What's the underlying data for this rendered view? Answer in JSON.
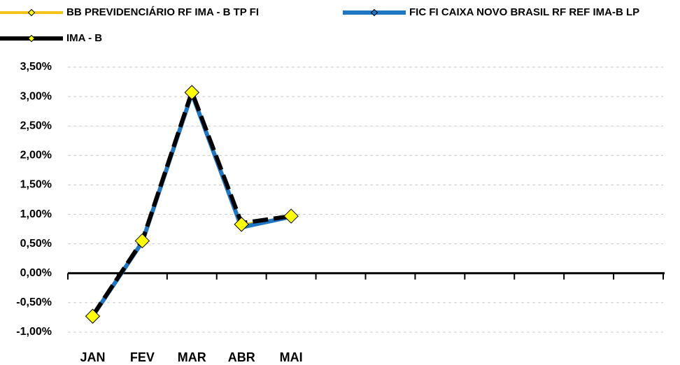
{
  "chart_data": {
    "type": "line",
    "categories": [
      "JAN",
      "FEV",
      "MAR",
      "ABR",
      "MAI",
      null,
      null,
      null,
      null,
      null,
      null,
      null
    ],
    "series": [
      {
        "name": "BB PREVIDENCIÁRIO RF IMA - B TP FI",
        "color": "#f2c417",
        "values": [
          -0.73,
          0.55,
          3.07,
          0.83,
          0.97,
          null,
          null,
          null,
          null,
          null,
          null,
          null
        ]
      },
      {
        "name": "FIC FI CAIXA NOVO BRASIL RF REF IMA-B LP",
        "color": "#1f77c4",
        "values": [
          -0.73,
          0.53,
          3.05,
          0.78,
          0.96,
          null,
          null,
          null,
          null,
          null,
          null,
          null
        ]
      },
      {
        "name": "IMA - B",
        "color": "#000000",
        "values": [
          -0.72,
          0.55,
          3.08,
          0.85,
          0.97,
          null,
          null,
          null,
          null,
          null,
          null,
          null
        ]
      }
    ],
    "ylim": [
      -1,
      3.5
    ],
    "yticks": [
      {
        "value": -1,
        "label": "-1,00%"
      },
      {
        "value": -0.5,
        "label": "-0,50%"
      },
      {
        "value": 0,
        "label": "0,00%"
      },
      {
        "value": 0.5,
        "label": "0,50%"
      },
      {
        "value": 1,
        "label": "1,00%"
      },
      {
        "value": 1.5,
        "label": "1,50%"
      },
      {
        "value": 2,
        "label": "2,00%"
      },
      {
        "value": 2.5,
        "label": "2,50%"
      },
      {
        "value": 3,
        "label": "3,00%"
      },
      {
        "value": 3.5,
        "label": "3,50%"
      }
    ],
    "grid": true,
    "legend": "top"
  }
}
